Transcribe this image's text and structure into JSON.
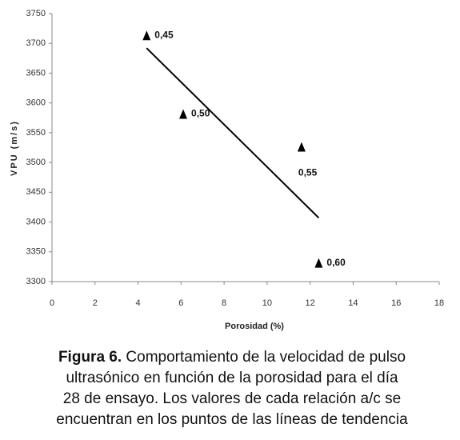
{
  "chart_data": {
    "type": "scatter",
    "x": [
      4.4,
      6.1,
      11.6,
      12.4
    ],
    "values": [
      3712,
      3580,
      3525,
      3330
    ],
    "point_labels": [
      "0,45",
      "0,50",
      "0,55",
      "0,60"
    ],
    "color": "#000000",
    "trendline": {
      "x": [
        4.4,
        12.4
      ],
      "values": [
        3692,
        3407
      ]
    },
    "xlim": [
      0,
      18
    ],
    "xticks": [
      0,
      2,
      4,
      6,
      8,
      10,
      12,
      14,
      16,
      18
    ],
    "ylim": [
      3300,
      3750
    ],
    "yticks": [
      3300,
      3350,
      3400,
      3450,
      3500,
      3550,
      3600,
      3650,
      3700,
      3750
    ],
    "xlabel": "Porosidad (%)",
    "ylabel": "VPU (m/s)",
    "grid": false,
    "caption_label": "Figura 6.",
    "caption_lines": [
      "Comportamiento de la velocidad de pulso",
      "ultrasónico en función de la porosidad para el día",
      "28 de ensayo.  Los valores de cada relación a/c se",
      "encuentran en los puntos de las líneas de tendencia"
    ]
  }
}
